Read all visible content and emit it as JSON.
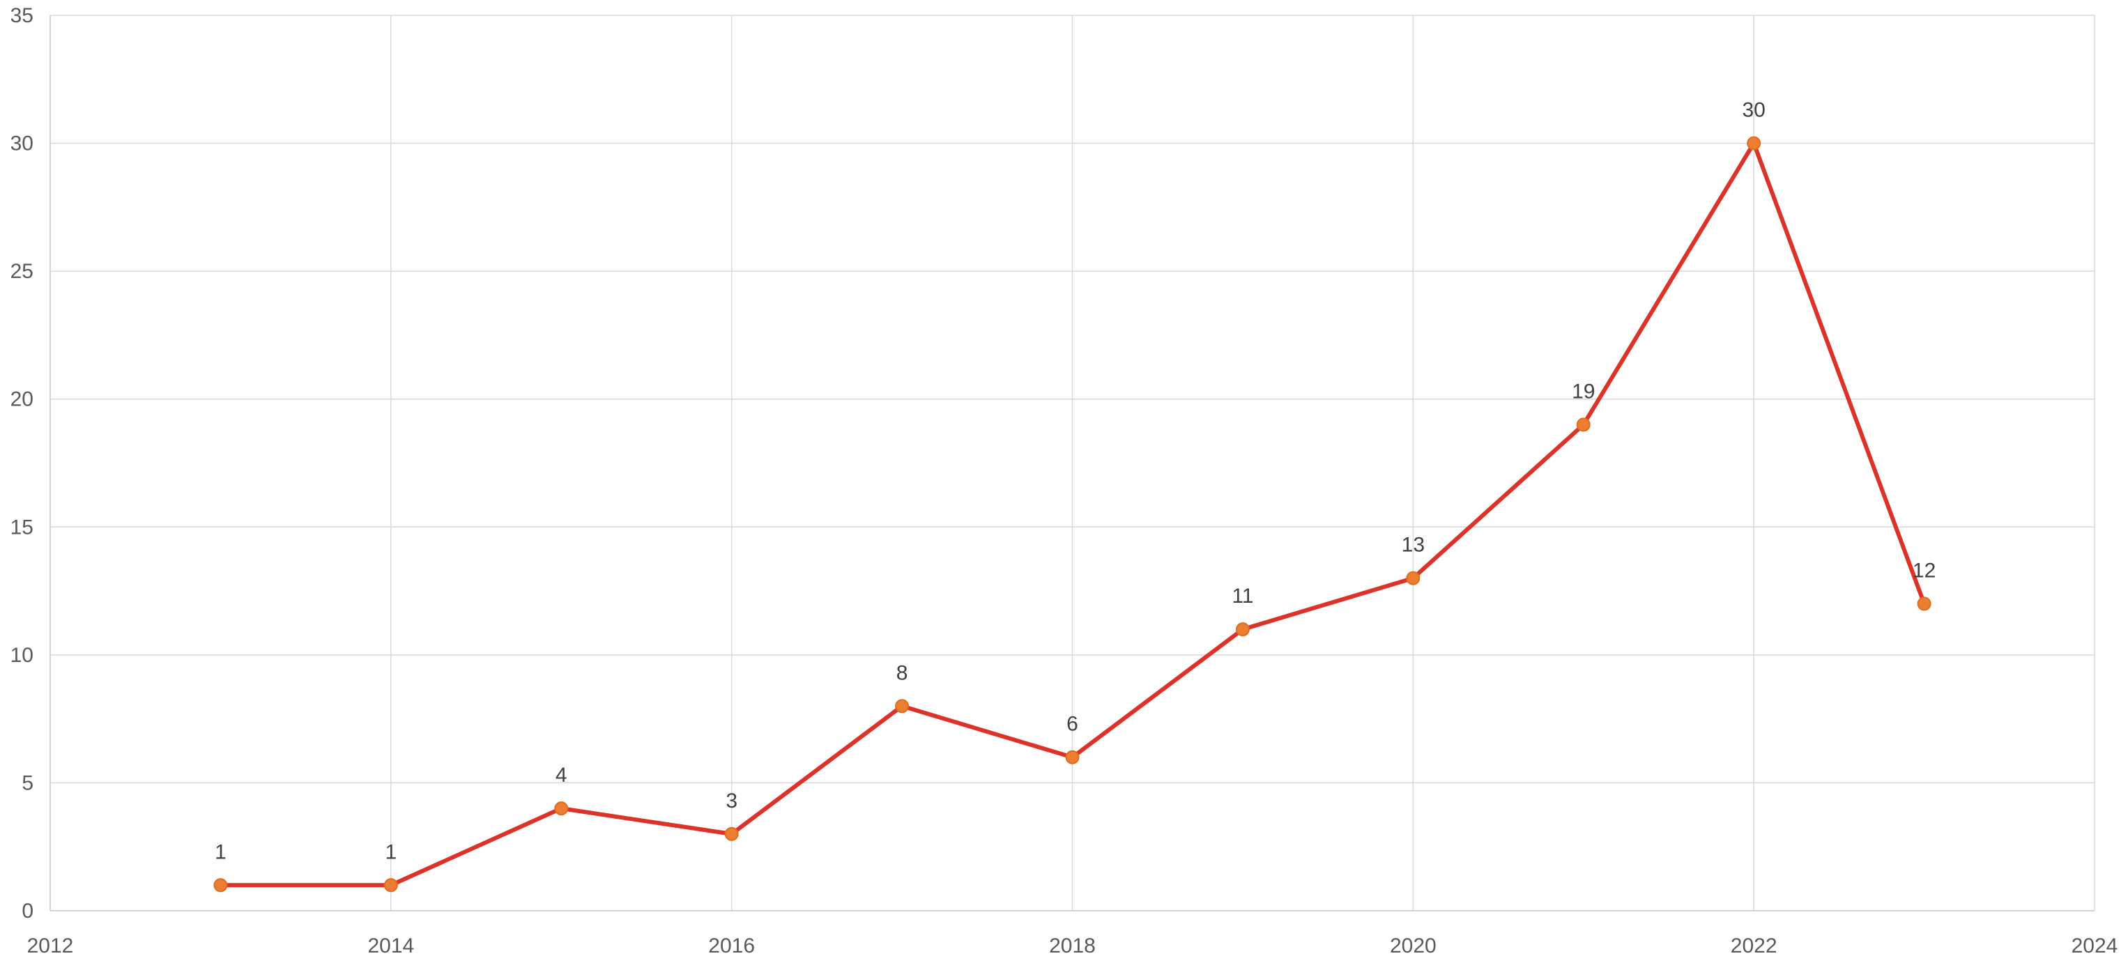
{
  "chart_data": {
    "type": "line",
    "title": "",
    "xlabel": "",
    "ylabel": "",
    "x": [
      2013,
      2014,
      2015,
      2016,
      2017,
      2018,
      2019,
      2020,
      2021,
      2022,
      2023
    ],
    "values": [
      1,
      1,
      4,
      3,
      8,
      6,
      11,
      13,
      19,
      30,
      12
    ],
    "data_labels": [
      "1",
      "1",
      "4",
      "3",
      "8",
      "6",
      "11",
      "13",
      "19",
      "30",
      "12"
    ],
    "x_ticks": [
      "2012",
      "2014",
      "2016",
      "2018",
      "2020",
      "2022",
      "2024"
    ],
    "x_tick_values": [
      2012,
      2014,
      2016,
      2018,
      2020,
      2022,
      2024
    ],
    "y_ticks": [
      "0",
      "5",
      "10",
      "15",
      "20",
      "25",
      "30",
      "35"
    ],
    "y_tick_values": [
      0,
      5,
      10,
      15,
      20,
      25,
      30,
      35
    ],
    "xlim": [
      2012,
      2024
    ],
    "ylim": [
      0,
      35
    ],
    "grid": true,
    "legend": false,
    "colors": {
      "line": "#dd3228",
      "marker_fill": "#ed7d31",
      "marker_edge": "#e06c1f",
      "gridline": "#d9d9d9",
      "axis_line": "#c6c6c6",
      "tick_label": "#595959",
      "data_label": "#404040",
      "background": "#ffffff"
    }
  }
}
